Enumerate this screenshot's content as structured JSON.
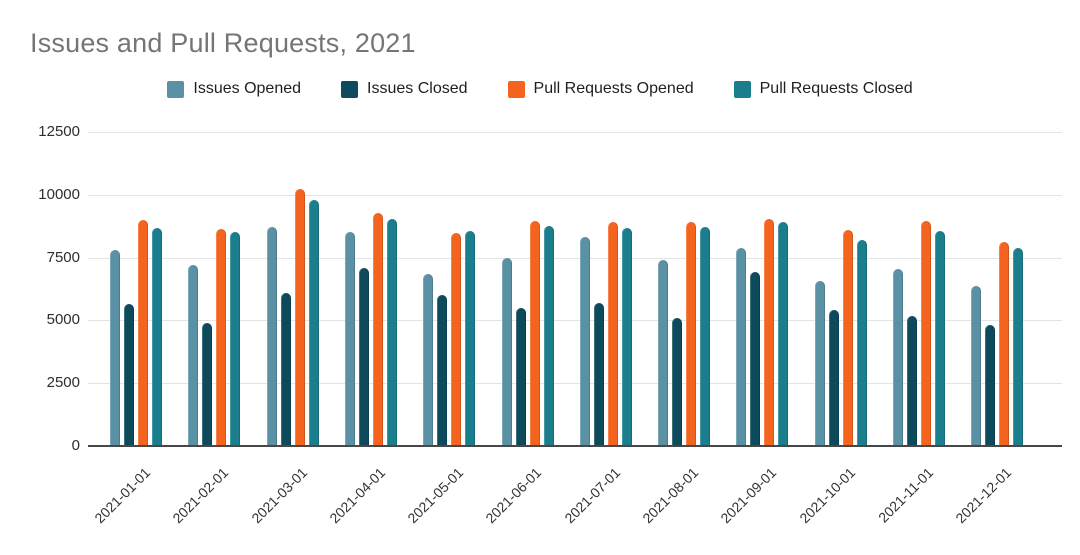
{
  "title": "Issues and Pull Requests, 2021",
  "colors": {
    "title_text": "#757575",
    "grid": "#e4e4e4",
    "axis_line": "#474747",
    "axis_text": "#2e2e2e",
    "issues_opened": "#5b91a5",
    "issues_closed": "#0d4a5c",
    "pull_requests_opened": "#f5641e",
    "pull_requests_closed": "#1a7e8c"
  },
  "chart_data": {
    "type": "bar",
    "title": "Issues and Pull Requests, 2021",
    "categories": [
      "2021-01-01",
      "2021-02-01",
      "2021-03-01",
      "2021-04-01",
      "2021-05-01",
      "2021-06-01",
      "2021-07-01",
      "2021-08-01",
      "2021-09-01",
      "2021-10-01",
      "2021-11-01",
      "2021-12-01"
    ],
    "series": [
      {
        "name": "Issues Opened",
        "color": "#5b91a5",
        "values": [
          7790,
          7190,
          8710,
          8510,
          6830,
          7470,
          8310,
          7390,
          7870,
          6550,
          7030,
          6350
        ]
      },
      {
        "name": "Issues Closed",
        "color": "#0d4a5c",
        "values": [
          5670,
          4910,
          6110,
          7070,
          6030,
          5510,
          5710,
          5110,
          6910,
          5430,
          5190,
          4830
        ]
      },
      {
        "name": "Pull Requests Opened",
        "color": "#f5641e",
        "values": [
          8990,
          8630,
          10220,
          9270,
          8470,
          8950,
          8910,
          8910,
          9030,
          8590,
          8950,
          8110
        ]
      },
      {
        "name": "Pull Requests Closed",
        "color": "#1a7e8c",
        "values": [
          8670,
          8510,
          9790,
          9030,
          8550,
          8750,
          8670,
          8710,
          8910,
          8190,
          8550,
          7870
        ]
      }
    ],
    "xlabel": "",
    "ylabel": "",
    "ylim": [
      0,
      12500
    ],
    "yticks": [
      0,
      2500,
      5000,
      7500,
      10000,
      12500
    ],
    "grid": true,
    "legend_position": "top"
  }
}
